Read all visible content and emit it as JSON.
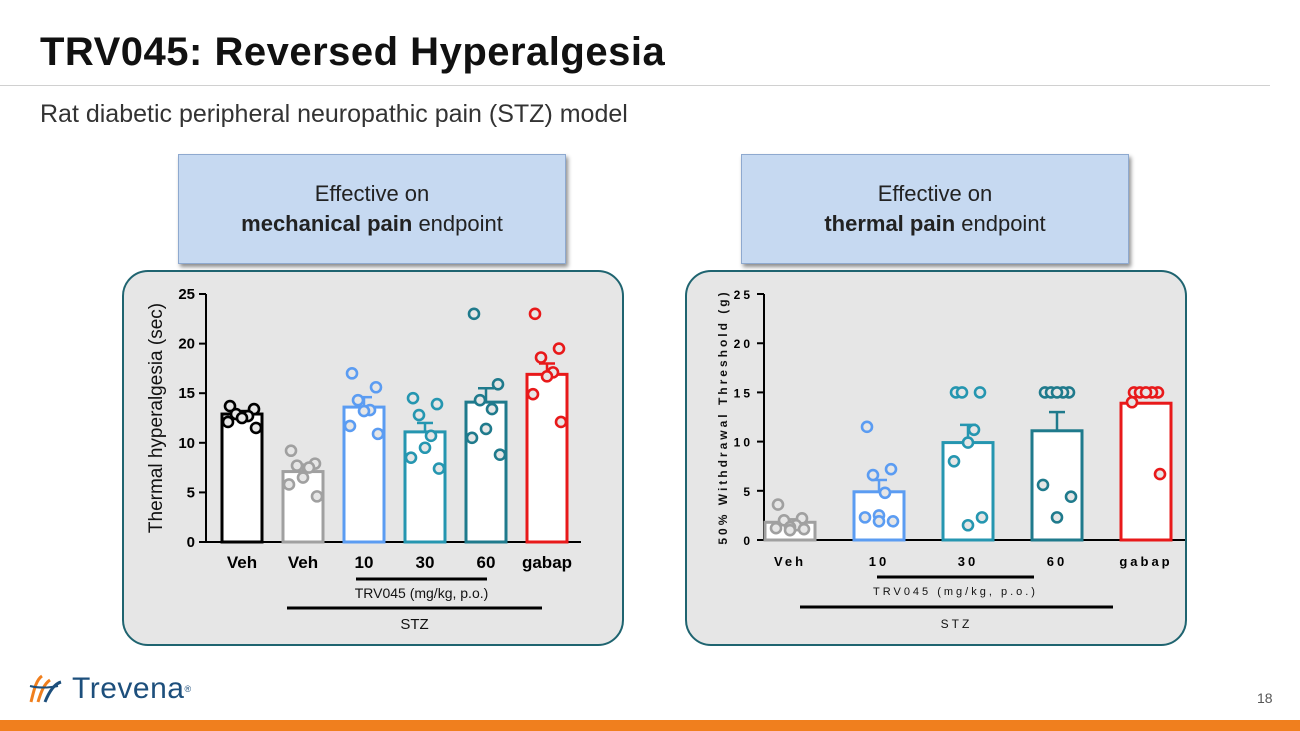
{
  "slide": {
    "title": "TRV045: Reversed Hyperalgesia",
    "subtitle": "Rat diabetic peripheral neuropathic pain (STZ) model",
    "page_number": "18",
    "logo_text": "Trevena",
    "logo_reg": "®"
  },
  "callouts": [
    {
      "line1": "Effective on",
      "bold": "mechanical pain",
      "rest": " endpoint"
    },
    {
      "line1": "Effective on",
      "bold": "thermal pain",
      "rest": " endpoint"
    }
  ],
  "colors": {
    "bottom_bar": "#f07f1e",
    "panel_border": "#1f6470",
    "callout_bg": "#c6d9f1",
    "veh_black": "#000000",
    "veh_grey": "#a0a0a0",
    "dose_10": "#5b9cf2",
    "dose_30": "#2596b0",
    "dose_60": "#1f7a8c",
    "gabap": "#e8191a"
  },
  "chart_data": [
    {
      "type": "bar",
      "ylabel": "Thermal hyperalgesia (sec)",
      "ylim": [
        0,
        25
      ],
      "yticks": [
        "0",
        "5",
        "10",
        "15",
        "20",
        "25"
      ],
      "categories": [
        "Veh",
        "Veh",
        "10",
        "30",
        "60",
        "gabap"
      ],
      "colors": [
        "#000000",
        "#a0a0a0",
        "#5b9cf2",
        "#2596b0",
        "#1f7a8c",
        "#e8191a"
      ],
      "values": [
        12.9,
        7.1,
        13.6,
        11.1,
        14.1,
        16.9
      ],
      "sem": [
        0.3,
        0.7,
        1.0,
        0.9,
        1.4,
        1.1
      ],
      "points": [
        [
          13.7,
          13.4,
          12.9,
          12.7,
          12.5,
          12.1,
          11.5
        ],
        [
          9.2,
          7.9,
          7.7,
          7.5,
          6.5,
          5.8,
          4.6
        ],
        [
          17.0,
          15.6,
          14.3,
          13.3,
          13.2,
          11.7,
          10.9
        ],
        [
          14.5,
          13.9,
          12.8,
          10.7,
          9.5,
          8.5,
          7.4
        ],
        [
          23.0,
          15.9,
          14.3,
          13.4,
          11.4,
          10.5,
          8.8
        ],
        [
          23.0,
          19.5,
          18.6,
          17.1,
          16.7,
          14.9,
          12.1
        ]
      ],
      "group_label": "TRV045 (mg/kg, p.o.)",
      "bracket_label": "STZ"
    },
    {
      "type": "bar",
      "ylabel": "50% Withdrawal Threshold (g)",
      "ylim": [
        0,
        25
      ],
      "yticks": [
        "0",
        "5",
        "10",
        "15",
        "20",
        "25"
      ],
      "categories": [
        "Veh",
        "10",
        "30",
        "60",
        "gabap"
      ],
      "colors": [
        "#a0a0a0",
        "#5b9cf2",
        "#2596b0",
        "#1f7a8c",
        "#e8191a"
      ],
      "values": [
        1.8,
        4.9,
        9.9,
        11.1,
        13.9
      ],
      "sem": [
        0.3,
        1.2,
        1.8,
        1.9,
        0.0
      ],
      "points": [
        [
          3.6,
          2.2,
          2.0,
          1.5,
          1.3,
          1.2,
          1.1,
          1.0
        ],
        [
          11.5,
          7.2,
          6.6,
          4.8,
          2.5,
          2.3,
          1.9,
          1.9
        ],
        [
          15.0,
          15.0,
          15.0,
          11.2,
          9.9,
          8.0,
          2.3,
          1.5
        ],
        [
          15.0,
          15.0,
          15.0,
          15.0,
          15.0,
          5.6,
          4.4,
          2.3
        ],
        [
          15.0,
          15.0,
          15.0,
          15.0,
          15.0,
          14.0,
          6.7
        ]
      ],
      "group_label": "TRV045 (mg/kg, p.o.)",
      "bracket_label": "STZ"
    }
  ]
}
